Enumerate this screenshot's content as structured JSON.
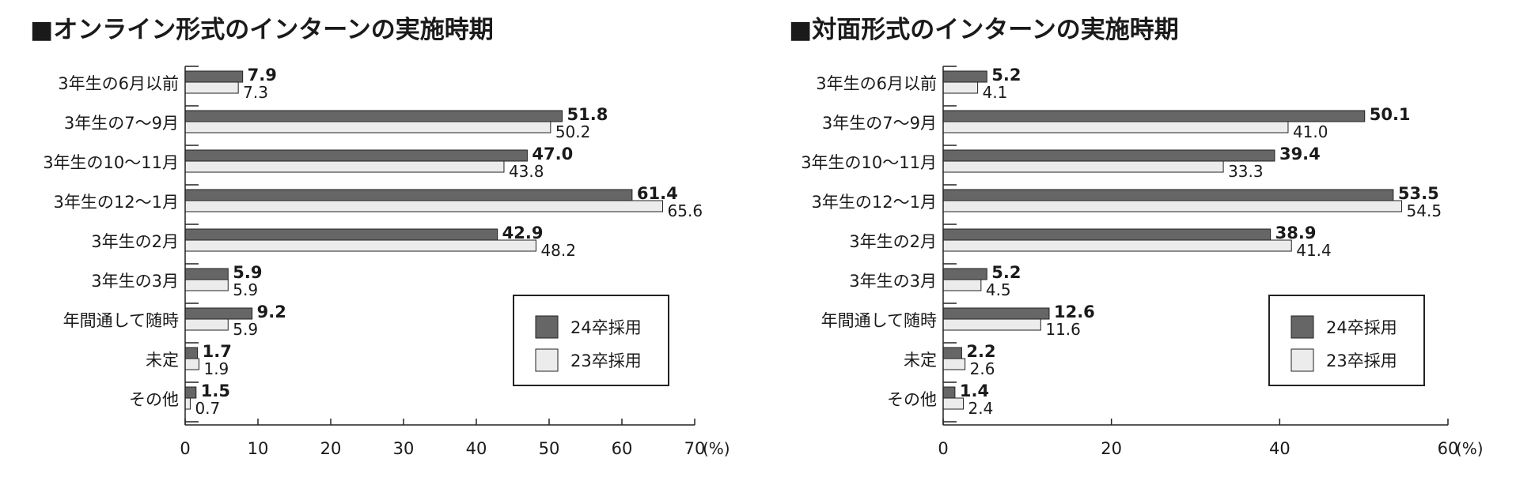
{
  "legend": {
    "series_24_label": "24卒採用",
    "series_23_label": "23卒採用"
  },
  "chart_data": [
    {
      "type": "bar",
      "orientation": "horizontal",
      "title": "■オンライン形式のインターンの実施時期",
      "xlabel": "(%)",
      "xlim": [
        0,
        70
      ],
      "xticks": [
        0,
        10,
        20,
        30,
        40,
        50,
        60,
        70
      ],
      "legend_position": "bottom-right",
      "categories": [
        "3年生の6月以前",
        "3年生の7～9月",
        "3年生の10～11月",
        "3年生の12～1月",
        "3年生の2月",
        "3年生の3月",
        "年間通して随時",
        "未定",
        "その他"
      ],
      "series": [
        {
          "name": "24卒採用",
          "color": "#666666",
          "values": [
            7.9,
            51.8,
            47.0,
            61.4,
            42.9,
            5.9,
            9.2,
            1.7,
            1.5
          ]
        },
        {
          "name": "23卒採用",
          "color": "#ececec",
          "values": [
            7.3,
            50.2,
            43.8,
            65.6,
            48.2,
            5.9,
            5.9,
            1.9,
            0.7
          ]
        }
      ]
    },
    {
      "type": "bar",
      "orientation": "horizontal",
      "title": "■対面形式のインターンの実施時期",
      "xlabel": "(%)",
      "xlim": [
        0,
        60
      ],
      "xticks": [
        0,
        20,
        40,
        60
      ],
      "legend_position": "bottom-right",
      "categories": [
        "3年生の6月以前",
        "3年生の7～9月",
        "3年生の10～11月",
        "3年生の12～1月",
        "3年生の2月",
        "3年生の3月",
        "年間通して随時",
        "未定",
        "その他"
      ],
      "series": [
        {
          "name": "24卒採用",
          "color": "#666666",
          "values": [
            5.2,
            50.1,
            39.4,
            53.5,
            38.9,
            5.2,
            12.6,
            2.2,
            1.4
          ]
        },
        {
          "name": "23卒採用",
          "color": "#ececec",
          "values": [
            4.1,
            41.0,
            33.3,
            54.5,
            41.4,
            4.5,
            11.6,
            2.6,
            2.4
          ]
        }
      ]
    }
  ]
}
